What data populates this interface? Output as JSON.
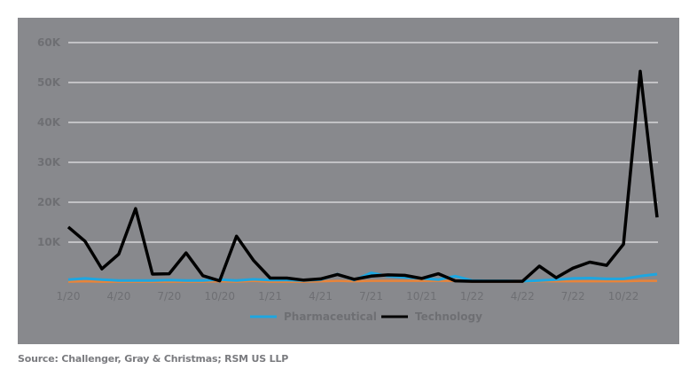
{
  "source_text": "Source: Challenger, Gray & Christmas; RSM US LLP",
  "colors": {
    "panel_bg": "#88898d",
    "gridline": "#d6d6d8",
    "pharmaceutical": "#1ea6e0",
    "technology": "#000000",
    "other_series": "#e8843a",
    "axis_text": "#6e6f73"
  },
  "chart_data": {
    "type": "line",
    "title": "",
    "xlabel": "",
    "ylabel": "",
    "ylim": [
      0,
      60000
    ],
    "yticks": [
      "60K",
      "50K",
      "40K",
      "30K",
      "20K",
      "10K"
    ],
    "ytick_values": [
      60000,
      50000,
      40000,
      30000,
      20000,
      10000
    ],
    "xtick_labels": [
      "1/20",
      "4/20",
      "7/20",
      "10/20",
      "1/21",
      "4/21",
      "7/21",
      "10/21",
      "1/22",
      "4/22",
      "7/22",
      "10/22"
    ],
    "grid": true,
    "legend_position": "bottom",
    "legend": [
      "Pharmaceutical",
      "Technology"
    ],
    "x": [
      "1/20",
      "2/20",
      "3/20",
      "4/20",
      "5/20",
      "6/20",
      "7/20",
      "8/20",
      "9/20",
      "10/20",
      "11/20",
      "12/20",
      "1/21",
      "2/21",
      "3/21",
      "4/21",
      "5/21",
      "6/21",
      "7/21",
      "8/21",
      "9/21",
      "10/21",
      "11/21",
      "12/21",
      "1/22",
      "2/22",
      "3/22",
      "4/22",
      "5/22",
      "6/22",
      "7/22",
      "8/22",
      "9/22",
      "10/22",
      "11/22",
      "12/22"
    ],
    "series": [
      {
        "name": "Technology",
        "color": "#000000",
        "values": [
          13800,
          10200,
          3300,
          7000,
          18400,
          2000,
          2100,
          7300,
          1600,
          300,
          11500,
          5500,
          1000,
          1000,
          500,
          800,
          1900,
          700,
          1500,
          1800,
          1700,
          900,
          2100,
          300,
          200,
          200,
          200,
          200,
          4000,
          1100,
          3500,
          5000,
          4200,
          9500,
          52800,
          16200
        ]
      },
      {
        "name": "Pharmaceutical",
        "color": "#1ea6e0",
        "values": [
          600,
          900,
          600,
          400,
          400,
          400,
          500,
          400,
          400,
          600,
          400,
          700,
          500,
          500,
          400,
          600,
          2000,
          500,
          2300,
          1500,
          1200,
          900,
          600,
          1500,
          400,
          300,
          300,
          200,
          400,
          600,
          900,
          1000,
          800,
          800,
          1500,
          2000
        ]
      },
      {
        "name": "Other (unlabeled)",
        "color": "#e8843a",
        "values": [
          100,
          200,
          100,
          100,
          100,
          100,
          100,
          100,
          100,
          200,
          100,
          300,
          100,
          100,
          100,
          200,
          300,
          200,
          300,
          300,
          300,
          300,
          300,
          300,
          100,
          100,
          100,
          100,
          200,
          200,
          200,
          200,
          200,
          200,
          300,
          300
        ]
      }
    ]
  }
}
